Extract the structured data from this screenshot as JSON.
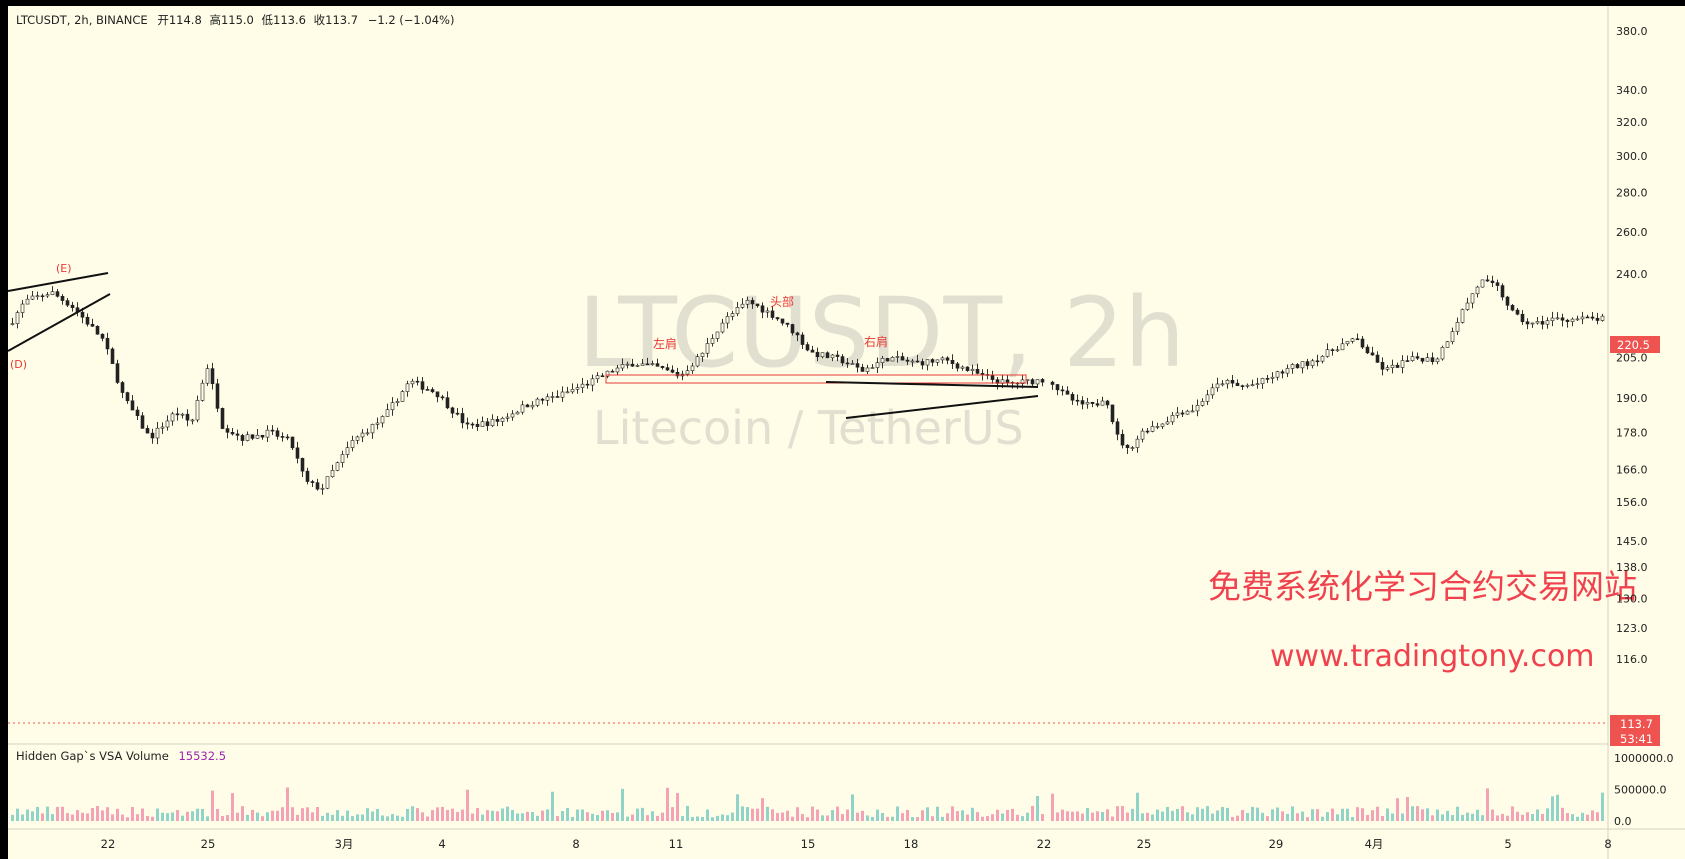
{
  "header": {
    "symbol": "LTCUSDT, 2h, BINANCE",
    "open_label": "开",
    "open": "114.8",
    "high_label": "高",
    "high": "115.0",
    "low_label": "低",
    "low": "113.6",
    "close_label": "收",
    "close": "113.7",
    "change": "−1.2 (−1.04%)"
  },
  "watermark": {
    "title": "LTCUSDT, 2h",
    "subtitle": "Litecoin / TetherUS"
  },
  "promo": {
    "line1": "免费系统化学习合约交易网站",
    "line2": "www.tradingtony.com"
  },
  "colors": {
    "background": "#fffde8",
    "up": "#26a69a",
    "down": "#ef5350",
    "annotation": "#e53935",
    "promo": "#f0424e",
    "volume_label": "#9c27b0"
  },
  "chart_data": [
    {
      "type": "candlestick",
      "price_scale": "log",
      "y_ticks": [
        "380.0",
        "340.0",
        "320.0",
        "300.0",
        "280.0",
        "260.0",
        "240.0",
        "220.5",
        "205.0",
        "190.0",
        "178.0",
        "166.0",
        "156.0",
        "145.0",
        "138.0",
        "130.0",
        "123.0",
        "116.0"
      ],
      "y_tick_values": [
        380,
        340,
        320,
        300,
        280,
        260,
        240,
        220.5,
        205,
        190,
        178,
        166,
        156,
        145,
        138,
        130,
        123,
        116
      ],
      "x_ticks": [
        "22",
        "25",
        "3月",
        "4",
        "8",
        "11",
        "15",
        "18",
        "22",
        "25",
        "29",
        "4月",
        "5",
        "8"
      ],
      "last_price_badge": "220.5",
      "current_price": {
        "value": "113.7",
        "countdown": "53:41"
      },
      "price_path": [
        [
          0,
          218
        ],
        [
          0.015,
          228
        ],
        [
          0.04,
          232
        ],
        [
          0.06,
          226
        ],
        [
          0.09,
          212
        ],
        [
          0.11,
          190
        ],
        [
          0.135,
          176
        ],
        [
          0.16,
          185
        ],
        [
          0.175,
          181
        ],
        [
          0.19,
          202
        ],
        [
          0.205,
          180
        ],
        [
          0.225,
          176
        ],
        [
          0.25,
          178
        ],
        [
          0.27,
          175
        ],
        [
          0.285,
          162
        ],
        [
          0.3,
          160
        ],
        [
          0.33,
          175
        ],
        [
          0.36,
          183
        ],
        [
          0.385,
          196
        ],
        [
          0.41,
          192
        ],
        [
          0.44,
          180
        ],
        [
          0.47,
          182
        ],
        [
          0.5,
          188
        ],
        [
          0.53,
          191
        ],
        [
          0.56,
          196
        ],
        [
          0.58,
          200
        ],
        [
          0.6,
          203
        ],
        [
          0.625,
          201
        ],
        [
          0.645,
          198
        ],
        [
          0.665,
          206
        ],
        [
          0.685,
          219
        ],
        [
          0.71,
          228
        ],
        [
          0.735,
          222
        ],
        [
          0.755,
          215
        ],
        [
          0.77,
          207
        ],
        [
          0.8,
          204
        ],
        [
          0.82,
          200
        ],
        [
          0.845,
          205
        ],
        [
          0.87,
          203
        ],
        [
          0.9,
          204
        ],
        [
          0.935,
          198
        ],
        [
          0.96,
          195
        ],
        [
          1.0,
          197
        ]
      ],
      "price_path_b": [
        [
          0,
          197
        ],
        [
          0.02,
          192
        ],
        [
          0.05,
          188
        ],
        [
          0.08,
          187
        ],
        [
          0.1,
          191
        ],
        [
          0.12,
          177
        ],
        [
          0.14,
          172
        ],
        [
          0.17,
          179
        ],
        [
          0.2,
          181
        ],
        [
          0.23,
          185
        ],
        [
          0.26,
          186
        ],
        [
          0.28,
          191
        ],
        [
          0.31,
          196
        ],
        [
          0.34,
          194
        ],
        [
          0.37,
          195
        ],
        [
          0.4,
          198
        ],
        [
          0.43,
          201
        ],
        [
          0.46,
          203
        ],
        [
          0.49,
          206
        ],
        [
          0.52,
          210
        ],
        [
          0.55,
          212
        ],
        [
          0.58,
          204
        ],
        [
          0.6,
          200
        ],
        [
          0.63,
          203
        ],
        [
          0.66,
          205
        ],
        [
          0.69,
          204
        ],
        [
          0.71,
          212
        ],
        [
          0.74,
          225
        ],
        [
          0.77,
          237
        ],
        [
          0.8,
          234
        ],
        [
          0.83,
          222
        ],
        [
          0.86,
          218
        ],
        [
          0.9,
          220.5
        ]
      ],
      "annotations": {
        "wave_e": "(E)",
        "wave_d": "(D)",
        "left_shoulder": "左肩",
        "head": "头部",
        "right_shoulder": "右肩"
      }
    },
    {
      "type": "bar",
      "name": "Hidden Gap`s VSA Volume",
      "value_label": "15532.5",
      "y_ticks": [
        "1000000.0",
        "500000.0",
        "0.0"
      ],
      "y_tick_values": [
        1000000,
        500000,
        0
      ]
    }
  ]
}
